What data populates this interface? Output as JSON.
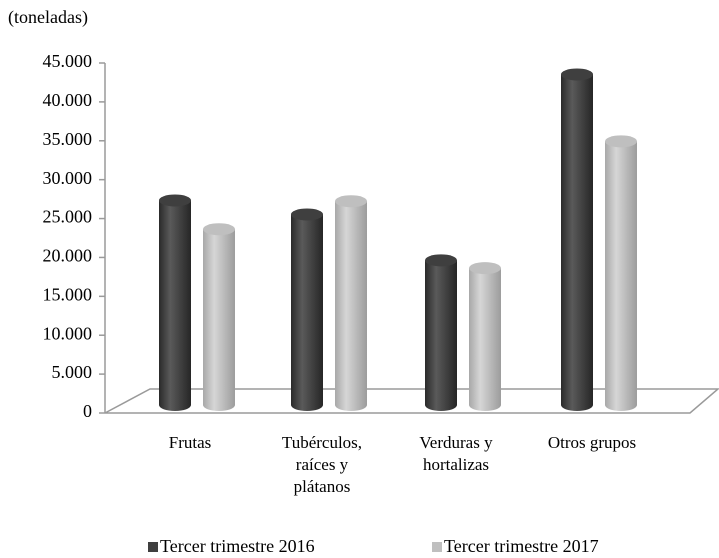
{
  "chart_data": {
    "type": "bar3d",
    "title": "(toneladas)",
    "categories": [
      "Frutas",
      "Tubérculos,\nraíces y\nplátanos",
      "Verduras y\nhortalizas",
      "Otros grupos"
    ],
    "series": [
      {
        "name": "Tercer trimestre 2016",
        "color": "#3f3f3f",
        "values": [
          26300,
          24500,
          18600,
          42500
        ]
      },
      {
        "name": "Tercer trimestre 2017",
        "color": "#bfbfbf",
        "values": [
          22600,
          26200,
          17600,
          33900
        ]
      }
    ],
    "ylim": [
      0,
      45000
    ],
    "yticks": [
      0,
      {
        "value": 5000,
        "label": "5.000"
      },
      {
        "value": 10000,
        "label": "10.000"
      },
      {
        "value": 15000,
        "label": "15.000"
      },
      {
        "value": 20000,
        "label": "20.000"
      },
      {
        "value": 25000,
        "label": "25.000"
      },
      {
        "value": 30000,
        "label": "30.000"
      },
      {
        "value": 35000,
        "label": "35.000"
      },
      {
        "value": 40000,
        "label": "40.000"
      },
      {
        "value": 45000,
        "label": "45.000"
      }
    ],
    "legend": "bottom"
  }
}
